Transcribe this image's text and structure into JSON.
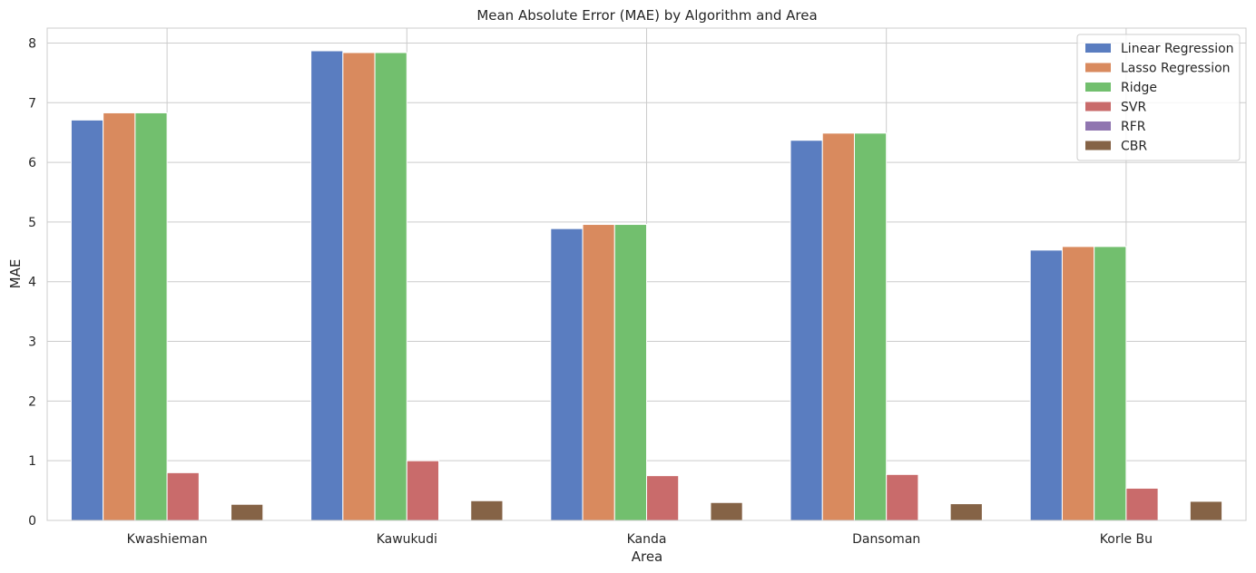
{
  "chart_data": {
    "type": "bar",
    "title": "Mean Absolute Error (MAE) by Algorithm and Area",
    "xlabel": "Area",
    "ylabel": "MAE",
    "categories": [
      "Kwashieman",
      "Kawukudi",
      "Kanda",
      "Dansoman",
      "Korle Bu"
    ],
    "ylim": [
      0,
      8.25
    ],
    "yticks": [
      0,
      1,
      2,
      3,
      4,
      5,
      6,
      7,
      8
    ],
    "grid": true,
    "legend_position": "top-right",
    "series": [
      {
        "name": "Linear Regression",
        "color": "#5a7dc0",
        "values": [
          6.71,
          7.87,
          4.89,
          6.37,
          4.53
        ]
      },
      {
        "name": "Lasso Regression",
        "color": "#d98a5e",
        "values": [
          6.83,
          7.84,
          4.96,
          6.49,
          4.59
        ]
      },
      {
        "name": "Ridge",
        "color": "#72bf6e",
        "values": [
          6.83,
          7.84,
          4.96,
          6.49,
          4.59
        ]
      },
      {
        "name": "SVR",
        "color": "#c96b6b",
        "values": [
          0.8,
          1.0,
          0.75,
          0.77,
          0.54
        ]
      },
      {
        "name": "RFR",
        "color": "#9076b0",
        "values": [
          0.0,
          0.0,
          0.0,
          0.0,
          0.0
        ]
      },
      {
        "name": "CBR",
        "color": "#856346",
        "values": [
          0.27,
          0.33,
          0.3,
          0.28,
          0.32
        ]
      }
    ]
  }
}
